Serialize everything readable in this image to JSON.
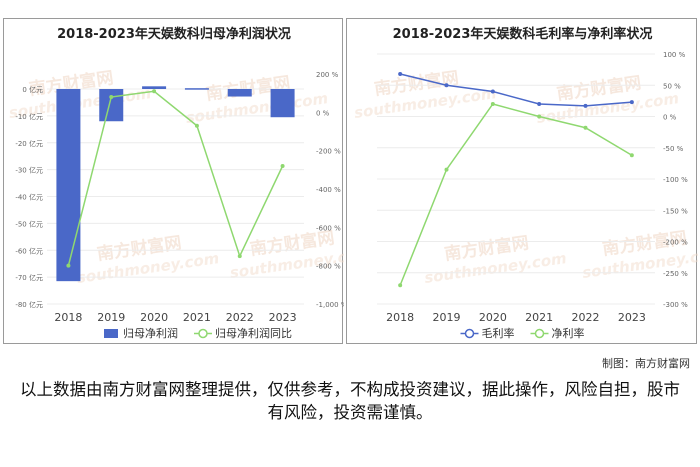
{
  "watermark": {
    "brand": "南方财富网",
    "domain": "southmoney.com"
  },
  "credit": "制图：南方财富网",
  "disclaimer": "以上数据由南方财富网整理提供，仅供参考，不构成投资建议，据此操作，风险自担，股市有风险，投资需谨慎。",
  "chart_data": [
    {
      "type": "bar",
      "title": "2018-2023年天娱数科归母净利润状况",
      "categories": [
        "2018",
        "2019",
        "2020",
        "2021",
        "2022",
        "2023"
      ],
      "y_left": {
        "min": -80,
        "max": 0,
        "unit_label": "亿元",
        "ticks": [
          "0 亿元",
          "-10 亿元",
          "-20 亿元",
          "-30 亿元",
          "-40 亿元",
          "-50 亿元",
          "-60 亿元",
          "-70 亿元",
          "-80 亿元"
        ]
      },
      "y_right": {
        "min": -1000,
        "max": 200,
        "ticks": [
          "200 %",
          "0 %",
          "-200 %",
          "-400 %",
          "-600 %",
          "-800 %",
          "-1,000 %"
        ]
      },
      "series": [
        {
          "name": "归母净利润",
          "kind": "bar",
          "axis": "left",
          "color": "#4a68c8",
          "values": [
            -71.5,
            -12.0,
            1.0,
            0.3,
            -2.8,
            -10.5
          ]
        },
        {
          "name": "归母净利润同比",
          "kind": "line",
          "axis": "right",
          "color": "#8fd870",
          "values": [
            -800,
            80,
            110,
            -70,
            -750,
            -280
          ]
        }
      ],
      "legend": "bottom"
    },
    {
      "type": "line",
      "title": "2018-2023年天娱数科毛利率与净利率状况",
      "categories": [
        "2018",
        "2019",
        "2020",
        "2021",
        "2022",
        "2023"
      ],
      "y_left": {
        "min": -300,
        "max": 100,
        "ticks": [
          "100 %",
          "50 %",
          "0 %",
          "-50 %",
          "-100 %",
          "-150 %",
          "-200 %",
          "-250 %",
          "-300 %"
        ]
      },
      "series": [
        {
          "name": "毛利率",
          "axis": "left",
          "color": "#4a68c8",
          "values": [
            68,
            50,
            40,
            20,
            17,
            23
          ]
        },
        {
          "name": "净利率",
          "axis": "left",
          "color": "#8fd870",
          "values": [
            -270,
            -85,
            20,
            0,
            -18,
            -62
          ]
        }
      ],
      "legend": "bottom"
    }
  ]
}
